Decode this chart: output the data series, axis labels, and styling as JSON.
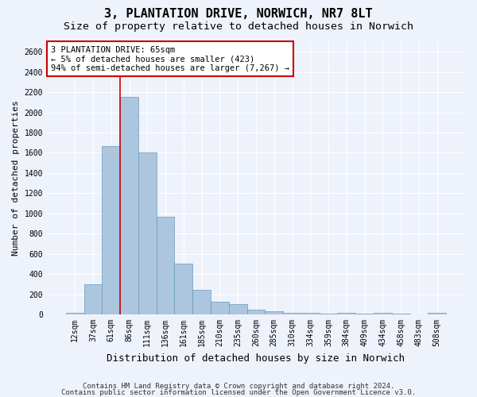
{
  "title": "3, PLANTATION DRIVE, NORWICH, NR7 8LT",
  "subtitle": "Size of property relative to detached houses in Norwich",
  "xlabel": "Distribution of detached houses by size in Norwich",
  "ylabel": "Number of detached properties",
  "categories": [
    "12sqm",
    "37sqm",
    "61sqm",
    "86sqm",
    "111sqm",
    "136sqm",
    "161sqm",
    "185sqm",
    "210sqm",
    "235sqm",
    "260sqm",
    "285sqm",
    "310sqm",
    "334sqm",
    "359sqm",
    "384sqm",
    "409sqm",
    "434sqm",
    "458sqm",
    "483sqm",
    "508sqm"
  ],
  "values": [
    20,
    300,
    1670,
    2150,
    1600,
    970,
    500,
    245,
    125,
    100,
    50,
    30,
    20,
    15,
    10,
    20,
    5,
    20,
    5,
    0,
    20
  ],
  "bar_color": "#adc6e0",
  "bar_edge_color": "#6699bb",
  "vline_x_index": 3,
  "vline_color": "#cc0000",
  "annotation_text": "3 PLANTATION DRIVE: 65sqm\n← 5% of detached houses are smaller (423)\n94% of semi-detached houses are larger (7,267) →",
  "annotation_box_color": "#ffffff",
  "annotation_box_edge": "#cc0000",
  "ylim": [
    0,
    2700
  ],
  "yticks": [
    0,
    200,
    400,
    600,
    800,
    1000,
    1200,
    1400,
    1600,
    1800,
    2000,
    2200,
    2400,
    2600
  ],
  "footer1": "Contains HM Land Registry data © Crown copyright and database right 2024.",
  "footer2": "Contains public sector information licensed under the Open Government Licence v3.0.",
  "background_color": "#eef2fb",
  "grid_color": "#ffffff",
  "title_fontsize": 11,
  "subtitle_fontsize": 9.5,
  "ylabel_fontsize": 8,
  "xlabel_fontsize": 9,
  "tick_fontsize": 7,
  "annotation_fontsize": 7.5,
  "footer_fontsize": 6.5
}
